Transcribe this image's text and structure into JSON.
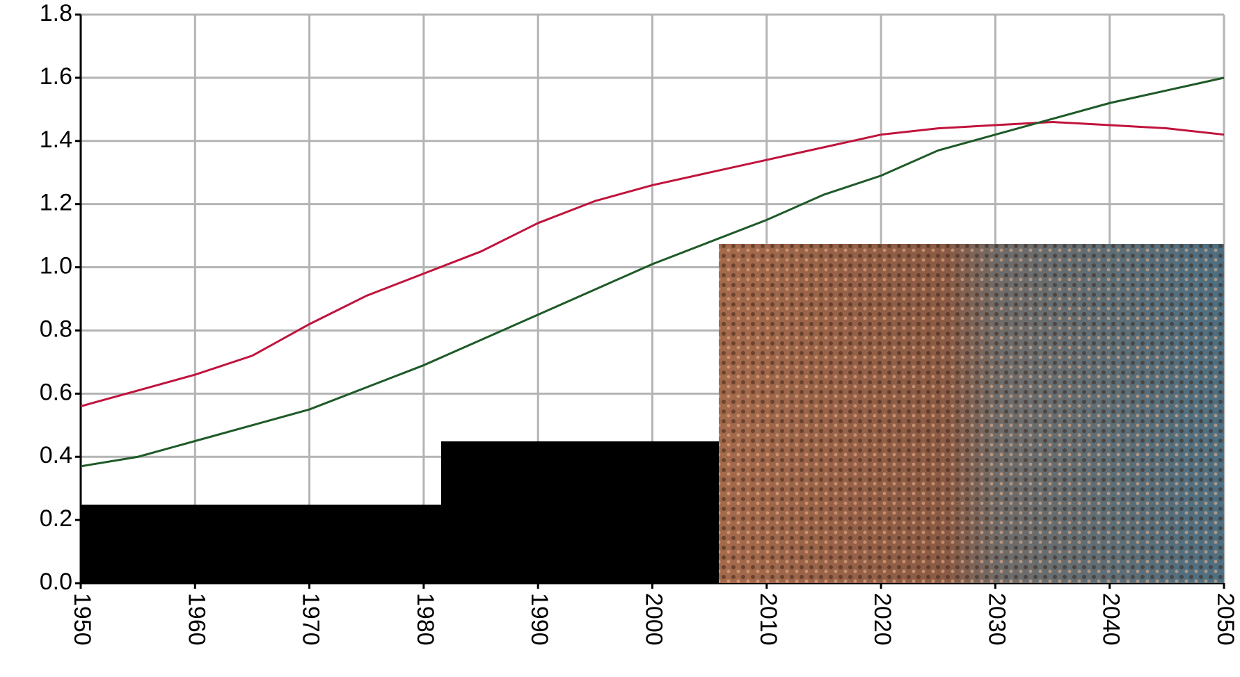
{
  "chart_data": {
    "type": "line",
    "x": [
      1950,
      1955,
      1960,
      1965,
      1970,
      1975,
      1980,
      1985,
      1990,
      1995,
      2000,
      2005,
      2010,
      2015,
      2020,
      2025,
      2030,
      2035,
      2040,
      2045,
      2050
    ],
    "series": [
      {
        "color": "#c0143c",
        "values": [
          0.56,
          0.61,
          0.66,
          0.72,
          0.82,
          0.91,
          0.98,
          1.05,
          1.14,
          1.21,
          1.26,
          1.3,
          1.34,
          1.38,
          1.42,
          1.44,
          1.45,
          1.46,
          1.45,
          1.44,
          1.42
        ]
      },
      {
        "color": "#1e5a28",
        "values": [
          0.37,
          0.4,
          0.45,
          0.5,
          0.55,
          0.62,
          0.69,
          0.77,
          0.85,
          0.93,
          1.01,
          1.08,
          1.15,
          1.23,
          1.29,
          1.37,
          1.42,
          1.47,
          1.52,
          1.56,
          1.6
        ]
      }
    ],
    "xlim": [
      1950,
      2050
    ],
    "xticks": [
      1950,
      1960,
      1970,
      1980,
      1990,
      2000,
      2010,
      2020,
      2030,
      2040,
      2050
    ],
    "ylim": [
      0,
      1.8
    ],
    "yticks": [
      {
        "value": 0,
        "label": "0.0"
      },
      0.2,
      0.4,
      0.6,
      0.8,
      {
        "value": 1,
        "label": "1.0"
      },
      1.2,
      1.4,
      1.6,
      1.8
    ],
    "grid": true
  }
}
